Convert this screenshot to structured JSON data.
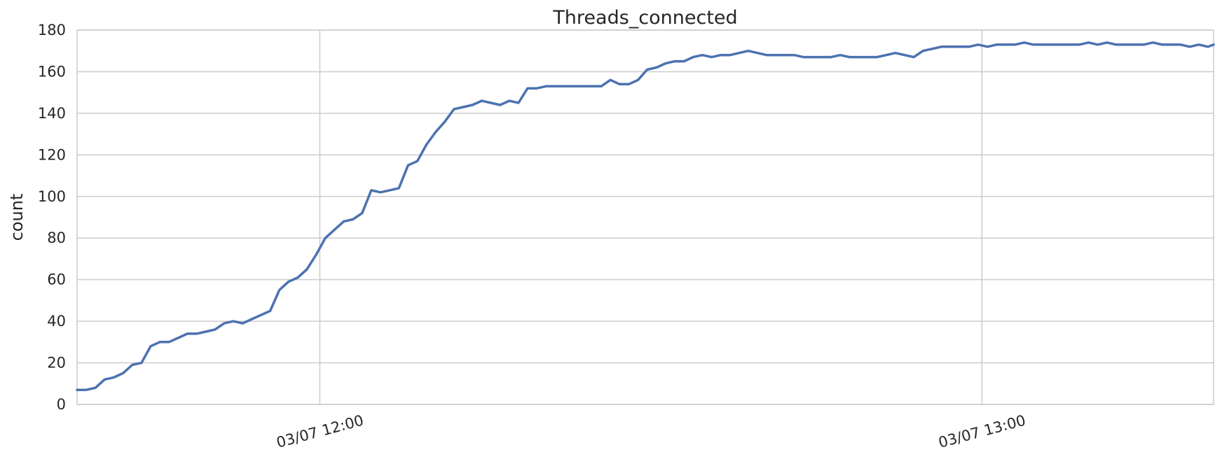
{
  "chart_data": {
    "type": "line",
    "title": "Threads_connected",
    "xlabel": "",
    "ylabel": "count",
    "ylim": [
      0,
      180
    ],
    "xlim": [
      "03/07 11:38:00",
      "03/07 13:21:00"
    ],
    "yticks": [
      0,
      20,
      40,
      60,
      80,
      100,
      120,
      140,
      160,
      180
    ],
    "xticks": [
      {
        "time": "03/07 12:00:00",
        "label": "03/07 12:00"
      },
      {
        "time": "03/07 13:00:00",
        "label": "03/07 13:00"
      }
    ],
    "grid": true,
    "colors": {
      "series": "#4c72b0",
      "grid": "#cccccc",
      "text": "#262626"
    },
    "series": [
      {
        "x": [
          "03/07 11:38:00",
          "03/07 11:38:50",
          "03/07 11:39:40",
          "03/07 11:40:30",
          "03/07 11:41:20",
          "03/07 11:42:10",
          "03/07 11:43:00",
          "03/07 11:43:50",
          "03/07 11:44:40",
          "03/07 11:45:30",
          "03/07 11:46:20",
          "03/07 11:47:10",
          "03/07 11:48:00",
          "03/07 11:48:50",
          "03/07 11:49:40",
          "03/07 11:50:30",
          "03/07 11:51:20",
          "03/07 11:52:10",
          "03/07 11:53:00",
          "03/07 11:53:50",
          "03/07 11:54:40",
          "03/07 11:55:30",
          "03/07 11:56:20",
          "03/07 11:57:10",
          "03/07 11:58:00",
          "03/07 11:58:50",
          "03/07 11:59:40",
          "03/07 12:00:30",
          "03/07 12:01:20",
          "03/07 12:02:10",
          "03/07 12:03:00",
          "03/07 12:03:50",
          "03/07 12:04:40",
          "03/07 12:05:30",
          "03/07 12:06:20",
          "03/07 12:07:10",
          "03/07 12:08:00",
          "03/07 12:08:50",
          "03/07 12:09:40",
          "03/07 12:10:30",
          "03/07 12:11:20",
          "03/07 12:12:10",
          "03/07 12:13:00",
          "03/07 12:13:50",
          "03/07 12:14:40",
          "03/07 12:15:30",
          "03/07 12:16:20",
          "03/07 12:17:10",
          "03/07 12:18:00",
          "03/07 12:18:50",
          "03/07 12:19:40",
          "03/07 12:20:30",
          "03/07 12:21:20",
          "03/07 12:22:10",
          "03/07 12:23:00",
          "03/07 12:23:50",
          "03/07 12:24:40",
          "03/07 12:25:30",
          "03/07 12:26:20",
          "03/07 12:27:10",
          "03/07 12:28:00",
          "03/07 12:28:50",
          "03/07 12:29:40",
          "03/07 12:30:30",
          "03/07 12:31:20",
          "03/07 12:32:10",
          "03/07 12:33:00",
          "03/07 12:33:50",
          "03/07 12:34:40",
          "03/07 12:35:30",
          "03/07 12:36:20",
          "03/07 12:37:10",
          "03/07 12:38:00",
          "03/07 12:38:50",
          "03/07 12:39:40",
          "03/07 12:40:30",
          "03/07 12:41:20",
          "03/07 12:42:10",
          "03/07 12:43:00",
          "03/07 12:43:50",
          "03/07 12:44:40",
          "03/07 12:45:30",
          "03/07 12:46:20",
          "03/07 12:47:10",
          "03/07 12:48:00",
          "03/07 12:48:50",
          "03/07 12:49:40",
          "03/07 12:50:30",
          "03/07 12:51:20",
          "03/07 12:52:10",
          "03/07 12:53:00",
          "03/07 12:53:50",
          "03/07 12:54:40",
          "03/07 12:55:30",
          "03/07 12:56:20",
          "03/07 12:57:10",
          "03/07 12:58:00",
          "03/07 12:58:50",
          "03/07 12:59:40",
          "03/07 13:00:30",
          "03/07 13:01:20",
          "03/07 13:02:10",
          "03/07 13:03:00",
          "03/07 13:03:50",
          "03/07 13:04:40",
          "03/07 13:05:30",
          "03/07 13:06:20",
          "03/07 13:07:10",
          "03/07 13:08:00",
          "03/07 13:08:50",
          "03/07 13:09:40",
          "03/07 13:10:30",
          "03/07 13:11:20",
          "03/07 13:12:10",
          "03/07 13:13:00",
          "03/07 13:13:50",
          "03/07 13:14:40",
          "03/07 13:15:30",
          "03/07 13:16:20",
          "03/07 13:17:10",
          "03/07 13:18:00",
          "03/07 13:18:50",
          "03/07 13:19:40",
          "03/07 13:20:30",
          "03/07 13:21:00"
        ],
        "values": [
          7,
          7,
          8,
          12,
          13,
          15,
          19,
          20,
          28,
          30,
          30,
          32,
          34,
          34,
          35,
          36,
          39,
          40,
          39,
          41,
          43,
          45,
          55,
          59,
          61,
          65,
          72,
          80,
          84,
          88,
          89,
          92,
          103,
          102,
          103,
          104,
          115,
          117,
          125,
          131,
          136,
          142,
          143,
          144,
          146,
          145,
          144,
          146,
          145,
          152,
          152,
          153,
          153,
          153,
          153,
          153,
          153,
          153,
          156,
          154,
          154,
          156,
          161,
          162,
          164,
          165,
          165,
          167,
          168,
          167,
          168,
          168,
          169,
          170,
          169,
          168,
          168,
          168,
          168,
          167,
          167,
          167,
          167,
          168,
          167,
          167,
          167,
          167,
          168,
          169,
          168,
          167,
          170,
          171,
          172,
          172,
          172,
          172,
          173,
          172,
          173,
          173,
          173,
          174,
          173,
          173,
          173,
          173,
          173,
          173,
          174,
          173,
          174,
          173,
          173,
          173,
          173,
          174,
          173,
          173,
          173,
          172,
          173,
          172,
          173
        ]
      }
    ]
  }
}
